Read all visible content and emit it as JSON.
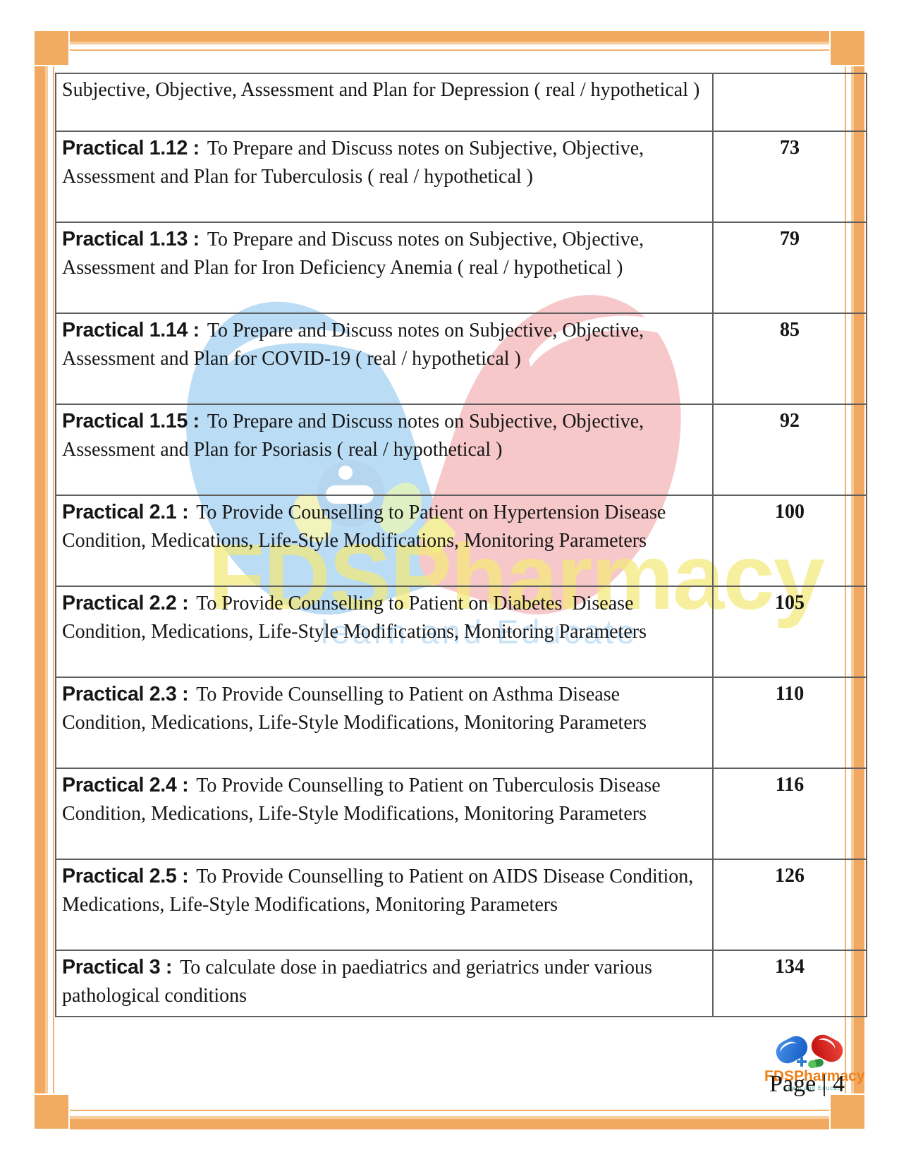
{
  "colors": {
    "frame_orange": "#f1a860",
    "brand_orange": "#ef8018",
    "pill_blue": "#1b63c8",
    "pill_red": "#c81714",
    "watermark_yellow": "#f3e978",
    "watermark_blue": "#badcf4",
    "watermark_pink": "#f7c8c9"
  },
  "watermark": {
    "title": "FDSPharmacy",
    "subtitle": "learn and Educate"
  },
  "table": {
    "rows": [
      {
        "prefix": "",
        "body": "Subjective, Objective, Assessment and Plan for Depression ( real / hypothetical )",
        "page": ""
      },
      {
        "prefix": "Practical 1.12 :",
        "body": "To Prepare and Discuss notes on Subjective, Objective, Assessment and Plan for Tuberculosis ( real / hypothetical )",
        "page": "73"
      },
      {
        "prefix": "Practical 1.13 :",
        "body": "To Prepare and Discuss notes on Subjective, Objective, Assessment and Plan for Iron Deficiency Anemia ( real / hypothetical )",
        "page": "79"
      },
      {
        "prefix": "Practical 1.14 :",
        "body": "To Prepare and Discuss notes on Subjective, Objective, Assessment and Plan for COVID-19 ( real / hypothetical )",
        "page": "85"
      },
      {
        "prefix": "Practical 1.15 :",
        "body": "To Prepare and Discuss notes on Subjective, Objective, Assessment and Plan for Psoriasis ( real / hypothetical )",
        "page": "92"
      },
      {
        "prefix": "Practical 2.1 :",
        "body": "To Provide Counselling to Patient on Hypertension Disease Condition, Medications, Life-Style Modifications, Monitoring Parameters",
        "page": "100"
      },
      {
        "prefix": "Practical 2.2 :",
        "body": "To Provide Counselling to Patient on Diabetes  Disease Condition, Medications, Life-Style Modifications, Monitoring Parameters",
        "page": "105"
      },
      {
        "prefix": "Practical 2.3 :",
        "body": "To Provide Counselling to Patient on Asthma Disease Condition, Medications, Life-Style Modifications, Monitoring Parameters",
        "page": "110"
      },
      {
        "prefix": "Practical 2.4 :",
        "body": "To Provide Counselling to Patient on Tuberculosis Disease Condition, Medications, Life-Style Modifications, Monitoring Parameters",
        "page": "116"
      },
      {
        "prefix": "Practical 2.5 :",
        "body": "To Provide Counselling to Patient on AIDS Disease Condition, Medications, Life-Style Modifications, Monitoring Parameters",
        "page": "126"
      },
      {
        "prefix": "Practical 3 :",
        "body": "To calculate dose in paediatrics and geriatrics under various pathological conditions",
        "page": "134"
      }
    ]
  },
  "footer": {
    "brand": "FDSPharmacy",
    "tagline": "Learn and Educate",
    "page_label": "Page | 4"
  }
}
